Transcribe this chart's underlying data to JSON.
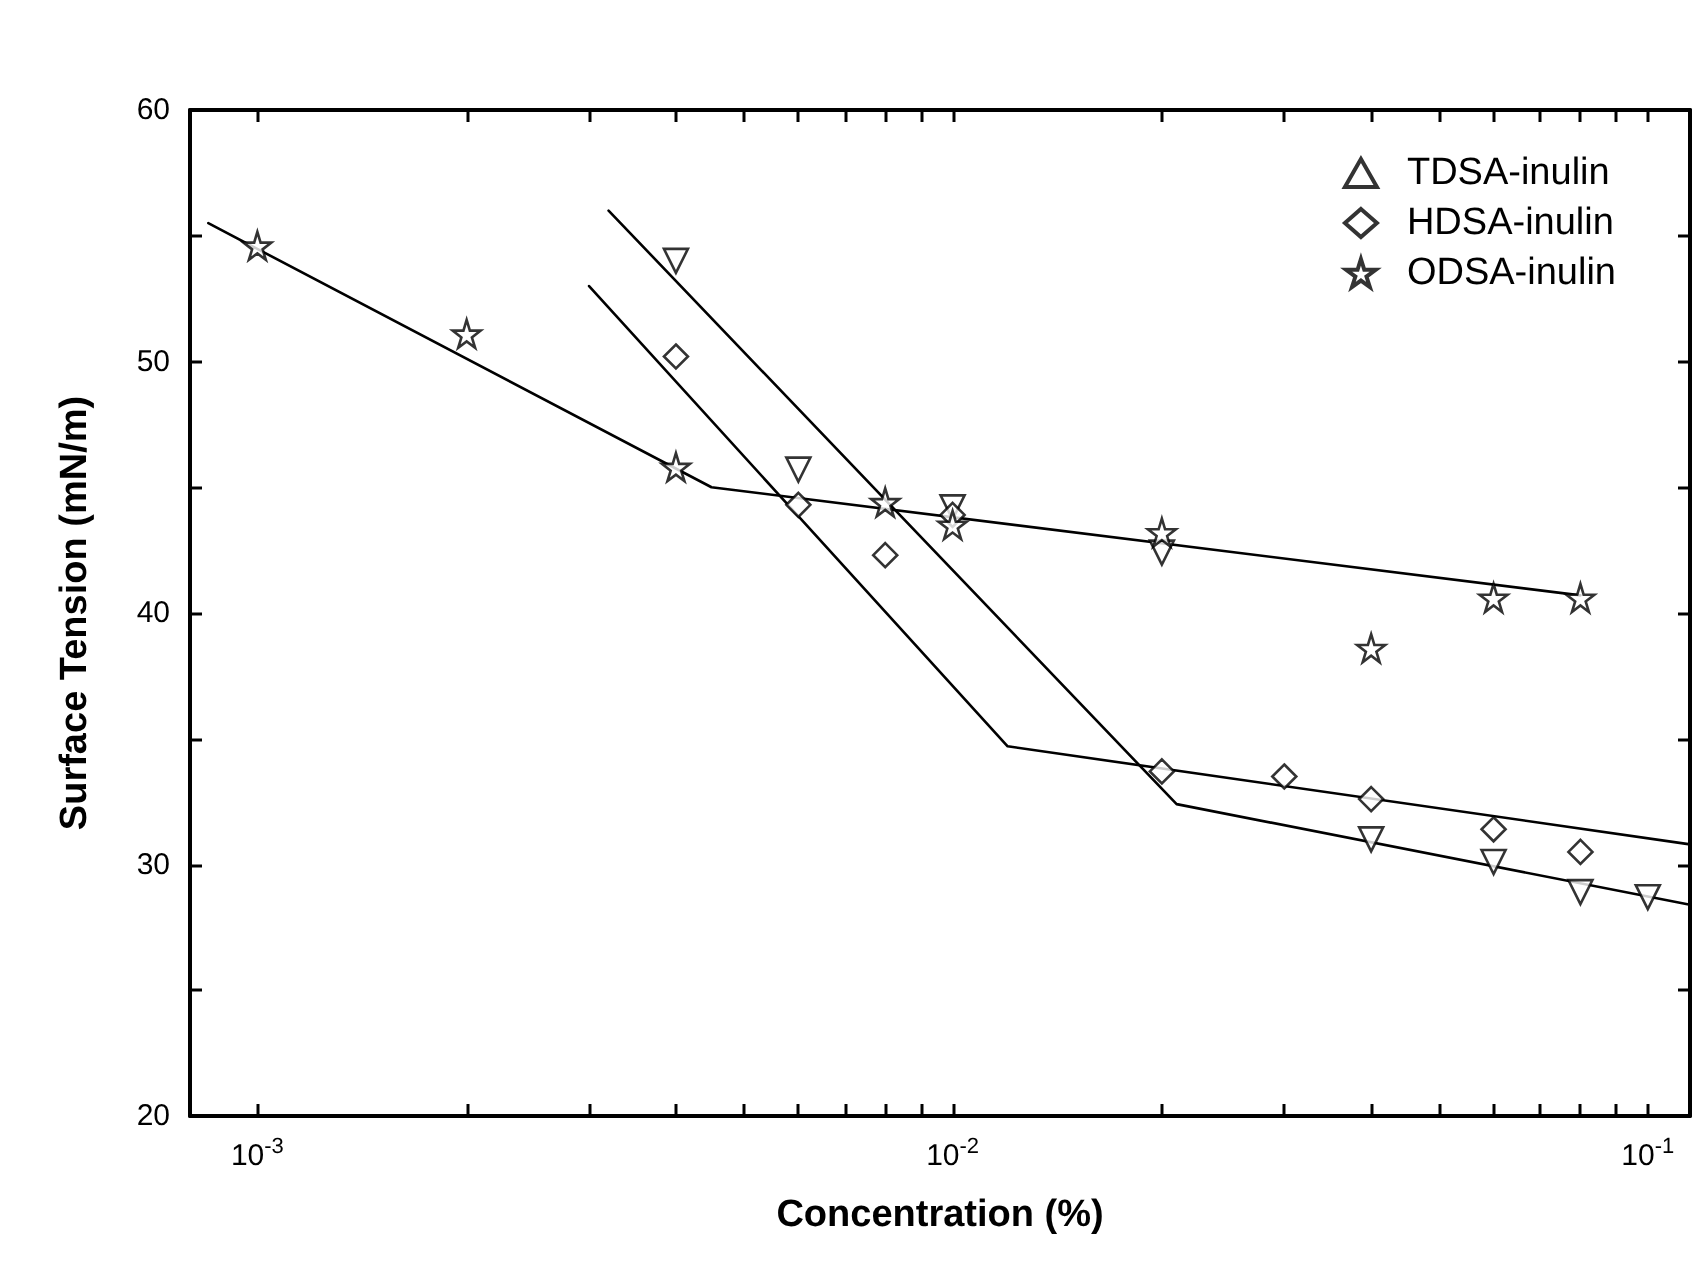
{
  "chart_data": {
    "type": "scatter",
    "xlabel": "Concentration (%)",
    "ylabel": "Surface Tension (mN/m)",
    "log": "x",
    "xlim": [
      0.0008,
      0.115
    ],
    "ylim": [
      20,
      60
    ],
    "xticks": [
      {
        "value": 0.001,
        "label": "10$^{-3}$"
      },
      {
        "value": 0.002,
        "label": null
      },
      {
        "value": 0.003,
        "label": null
      },
      {
        "value": 0.004,
        "label": null
      },
      {
        "value": 0.005,
        "label": null
      },
      {
        "value": 0.006,
        "label": null
      },
      {
        "value": 0.007,
        "label": null
      },
      {
        "value": 0.008,
        "label": null
      },
      {
        "value": 0.009,
        "label": null
      },
      {
        "value": 0.01,
        "label": "10$^{-2}$"
      },
      {
        "value": 0.02,
        "label": null
      },
      {
        "value": 0.03,
        "label": null
      },
      {
        "value": 0.04,
        "label": null
      },
      {
        "value": 0.05,
        "label": null
      },
      {
        "value": 0.06,
        "label": null
      },
      {
        "value": 0.07,
        "label": null
      },
      {
        "value": 0.08,
        "label": null
      },
      {
        "value": 0.09,
        "label": null
      },
      {
        "value": 0.1,
        "label": "10$^{-1}$"
      }
    ],
    "yticks": [
      20,
      {
        "value": 25,
        "label": null
      },
      30,
      {
        "value": 35,
        "label": null
      },
      40,
      {
        "value": 45,
        "label": null
      },
      50,
      {
        "value": 55,
        "label": null
      },
      60
    ],
    "grid": false,
    "legend": "top right",
    "series": [
      {
        "name": "TDSA-inulin",
        "color": "#000000",
        "marker": "triangle",
        "x": [
          0.004,
          0.006,
          0.01,
          0.02,
          0.04,
          0.06,
          0.08,
          0.1
        ],
        "values": [
          54.0,
          45.7,
          44.2,
          42.4,
          31.0,
          30.1,
          28.9,
          28.7
        ]
      },
      {
        "name": "HDSA-inulin",
        "color": "#000000",
        "marker": "diamond",
        "x": [
          0.004,
          0.006,
          0.008,
          0.01,
          0.02,
          0.03,
          0.04,
          0.06,
          0.08
        ],
        "values": [
          50.2,
          44.3,
          42.3,
          43.9,
          33.7,
          33.5,
          32.6,
          31.4,
          30.5
        ]
      },
      {
        "name": "ODSA-inulin",
        "color": "#000000",
        "marker": "star",
        "x": [
          0.001,
          0.002,
          0.004,
          0.008,
          0.01,
          0.02,
          0.04,
          0.06,
          0.08
        ],
        "values": [
          54.6,
          51.1,
          45.8,
          44.4,
          43.5,
          43.2,
          38.6,
          40.6,
          40.6
        ]
      },
      {
        "type": "line",
        "color": "#000000",
        "marker": "none",
        "x": [
          0.0032,
          0.021,
          0.115
        ],
        "values": [
          56.0,
          32.4,
          28.4
        ]
      },
      {
        "type": "line",
        "color": "#000000",
        "marker": "none",
        "x": [
          0.003,
          0.012,
          0.115
        ],
        "values": [
          53.0,
          34.7,
          30.8
        ]
      },
      {
        "type": "line",
        "color": "#000000",
        "marker": "none",
        "x": [
          0.00085,
          0.0045,
          0.08
        ],
        "values": [
          55.5,
          45.0,
          40.7
        ]
      }
    ]
  }
}
